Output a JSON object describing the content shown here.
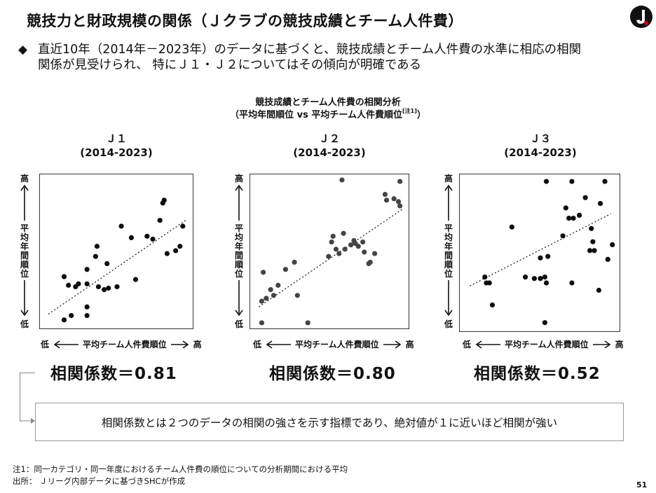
{
  "header": {
    "title": "競技力と財政規模の関係（Ｊクラブの競技成績とチーム人件費）",
    "logo": "j-league-logo"
  },
  "bullet": {
    "mark": "◆",
    "text_line1": "直近10年（2014年－2023年）のデータに基づくと、競技成績とチーム人件費の水準に相応の相関",
    "text_line2": "関係が見受けられ、 特にＪ１・Ｊ２についてはその傾向が明確である"
  },
  "chart_heading": {
    "line1": "競技成績とチーム人件費の相関分析",
    "line2": "（平均年間順位 vs 平均チーム人件費順位",
    "note_mark": "[注1]",
    "line2_end": "）"
  },
  "axes": {
    "y_high": "高",
    "y_low": "低",
    "y_text": "平均年間順位",
    "x_low": "低",
    "x_high": "高",
    "x_text": "平均チーム人件費順位"
  },
  "definition": "相関係数とは２つのデータの相関の強さを示す指標であり、絶対値が１に近いほど相関が強い",
  "footnotes": {
    "note1": "注1：同一カテゴリ・同一年度におけるチーム人件費の順位についての分析期間における平均",
    "source": "出所： Ｊリーグ内部データに基づきSHCが作成"
  },
  "page_number": "51",
  "chart_data": [
    {
      "type": "scatter",
      "name_line1": "Ｊ１",
      "name_line2": "(2014-2023)",
      "correlation_label": "相関係数＝0.81",
      "xlim": [
        0,
        1
      ],
      "ylim": [
        0,
        1
      ],
      "trendline": [
        [
          0.02,
          0.07
        ],
        [
          0.98,
          0.72
        ]
      ],
      "points": [
        [
          0.13,
          0.03
        ],
        [
          0.18,
          0.06
        ],
        [
          0.29,
          0.06
        ],
        [
          0.29,
          0.12
        ],
        [
          0.13,
          0.33
        ],
        [
          0.16,
          0.27
        ],
        [
          0.21,
          0.26
        ],
        [
          0.23,
          0.28
        ],
        [
          0.29,
          0.28
        ],
        [
          0.37,
          0.26
        ],
        [
          0.41,
          0.24
        ],
        [
          0.44,
          0.25
        ],
        [
          0.5,
          0.26
        ],
        [
          0.63,
          0.31
        ],
        [
          0.29,
          0.38
        ],
        [
          0.35,
          0.47
        ],
        [
          0.43,
          0.42
        ],
        [
          0.36,
          0.54
        ],
        [
          0.53,
          0.68
        ],
        [
          0.6,
          0.6
        ],
        [
          0.71,
          0.61
        ],
        [
          0.75,
          0.59
        ],
        [
          0.8,
          0.72
        ],
        [
          0.83,
          0.86
        ],
        [
          0.82,
          0.84
        ],
        [
          0.85,
          0.49
        ],
        [
          0.91,
          0.51
        ],
        [
          0.94,
          0.54
        ],
        [
          0.96,
          0.68
        ]
      ]
    },
    {
      "type": "scatter",
      "name_line1": "Ｊ２",
      "name_line2": "(2014-2023)",
      "correlation_label": "相関係数＝0.80",
      "xlim": [
        0,
        1
      ],
      "ylim": [
        0,
        1
      ],
      "trendline": [
        [
          0.02,
          0.12
        ],
        [
          0.99,
          0.8
        ]
      ],
      "points": [
        [
          0.04,
          0.01
        ],
        [
          0.04,
          0.16
        ],
        [
          0.07,
          0.18
        ],
        [
          0.05,
          0.36
        ],
        [
          0.1,
          0.24
        ],
        [
          0.12,
          0.2
        ],
        [
          0.15,
          0.27
        ],
        [
          0.2,
          0.38
        ],
        [
          0.28,
          0.2
        ],
        [
          0.26,
          0.43
        ],
        [
          0.35,
          0.01
        ],
        [
          0.49,
          0.47
        ],
        [
          0.51,
          0.57
        ],
        [
          0.52,
          0.61
        ],
        [
          0.54,
          0.52
        ],
        [
          0.56,
          0.49
        ],
        [
          0.59,
          0.63
        ],
        [
          0.6,
          0.52
        ],
        [
          0.64,
          0.55
        ],
        [
          0.66,
          0.58
        ],
        [
          0.67,
          0.56
        ],
        [
          0.69,
          0.54
        ],
        [
          0.72,
          0.57
        ],
        [
          0.73,
          0.5
        ],
        [
          0.76,
          0.42
        ],
        [
          0.77,
          0.43
        ],
        [
          0.8,
          0.49
        ],
        [
          0.58,
          1.0
        ],
        [
          0.87,
          0.9
        ],
        [
          0.88,
          0.86
        ],
        [
          0.93,
          0.87
        ],
        [
          0.96,
          0.85
        ],
        [
          0.97,
          0.82
        ],
        [
          0.97,
          0.99
        ]
      ]
    },
    {
      "type": "scatter",
      "name_line1": "Ｊ３",
      "name_line2": "(2014-2023)",
      "correlation_label": "相関係数＝0.52",
      "xlim": [
        0,
        1
      ],
      "ylim": [
        0,
        1
      ],
      "trendline": [
        [
          0.03,
          0.28
        ],
        [
          0.97,
          0.77
        ]
      ],
      "points": [
        [
          0.13,
          0.34
        ],
        [
          0.14,
          0.3
        ],
        [
          0.16,
          0.3
        ],
        [
          0.18,
          0.15
        ],
        [
          0.31,
          0.68
        ],
        [
          0.4,
          0.34
        ],
        [
          0.46,
          0.33
        ],
        [
          0.5,
          0.33
        ],
        [
          0.53,
          0.34
        ],
        [
          0.54,
          0.3
        ],
        [
          0.5,
          0.47
        ],
        [
          0.55,
          0.48
        ],
        [
          0.53,
          0.03
        ],
        [
          0.54,
          0.99
        ],
        [
          0.65,
          0.62
        ],
        [
          0.67,
          0.81
        ],
        [
          0.69,
          0.74
        ],
        [
          0.71,
          0.3
        ],
        [
          0.71,
          0.99
        ],
        [
          0.72,
          0.74
        ],
        [
          0.76,
          0.76
        ],
        [
          0.8,
          0.88
        ],
        [
          0.83,
          0.52
        ],
        [
          0.85,
          0.58
        ],
        [
          0.84,
          0.67
        ],
        [
          0.86,
          0.52
        ],
        [
          0.89,
          0.25
        ],
        [
          0.9,
          0.84
        ],
        [
          0.93,
          0.99
        ],
        [
          0.95,
          0.46
        ],
        [
          0.98,
          0.56
        ]
      ]
    }
  ]
}
